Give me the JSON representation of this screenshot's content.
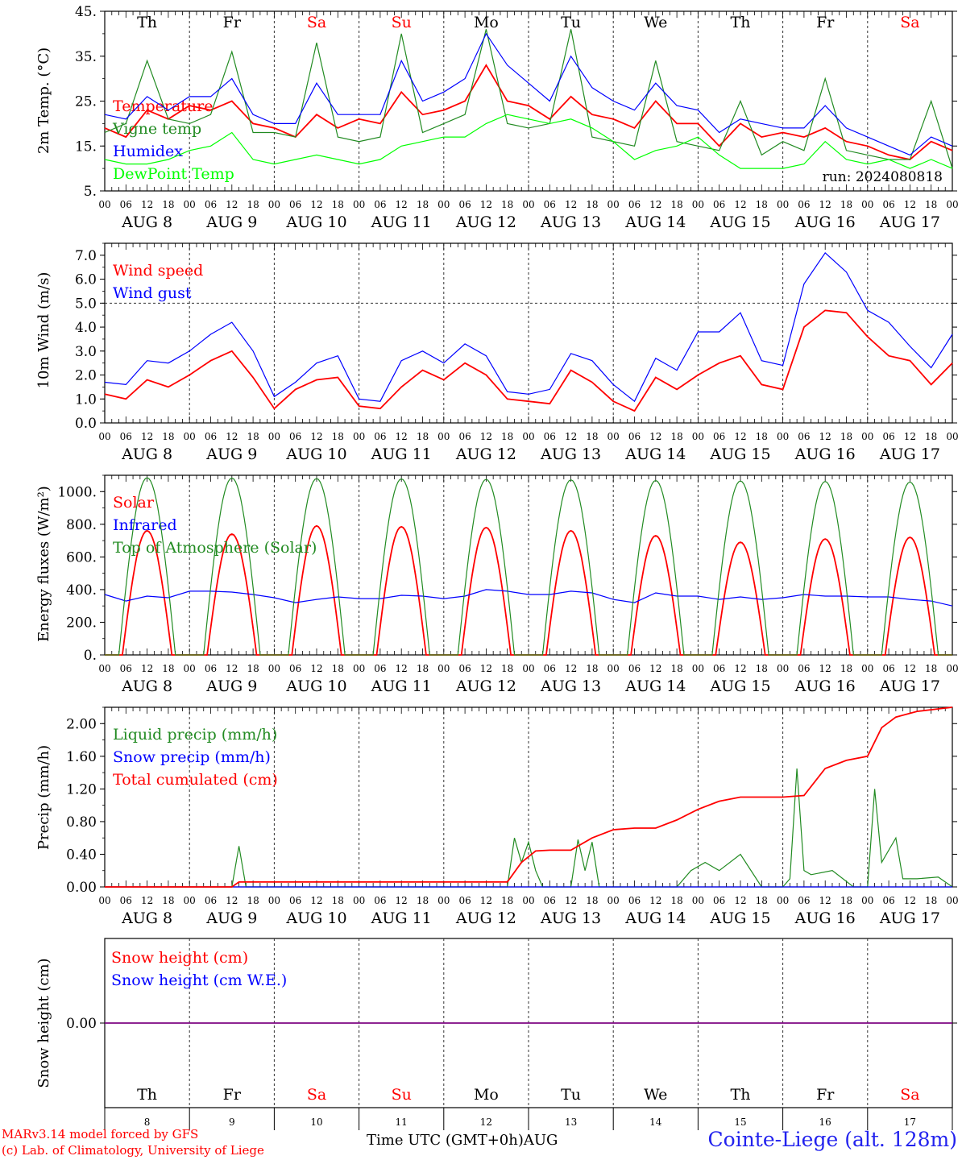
{
  "chart_data": [
    {
      "type": "line",
      "ylabel": "2m Temp. (°C)",
      "ylim": [
        5,
        45
      ],
      "yticks": [
        "5.",
        "15.",
        "25.",
        "35.",
        "45."
      ],
      "annotation": "run: 2024080818",
      "series": [
        {
          "name": "Temperature",
          "color": "#ff0000",
          "x_hours": [
            0,
            6,
            12,
            18,
            24,
            30,
            36,
            42,
            48,
            54,
            60,
            66,
            72,
            78,
            84,
            90,
            96,
            102,
            108,
            114,
            120,
            126,
            132,
            138,
            144,
            150,
            156,
            162,
            168,
            174,
            180,
            186,
            192,
            198,
            204,
            210,
            216,
            222,
            228,
            234,
            240
          ],
          "values": [
            19,
            17,
            23,
            21,
            24,
            23,
            25,
            20,
            19,
            17,
            22,
            19,
            21,
            20,
            27,
            22,
            23,
            25,
            33,
            25,
            24,
            21,
            26,
            22,
            21,
            19,
            25,
            20,
            20,
            15,
            20,
            17,
            18,
            17,
            19,
            16,
            15,
            13,
            12,
            16,
            14
          ]
        },
        {
          "name": "Vigne temp",
          "color": "#228b22",
          "x_hours": [
            0,
            6,
            12,
            18,
            24,
            30,
            36,
            42,
            48,
            54,
            60,
            66,
            72,
            78,
            84,
            90,
            96,
            102,
            108,
            114,
            120,
            126,
            132,
            138,
            144,
            150,
            156,
            162,
            168,
            174,
            180,
            186,
            192,
            198,
            204,
            210,
            216,
            222,
            228,
            234,
            240
          ],
          "values": [
            18,
            20,
            34,
            21,
            20,
            22,
            36,
            18,
            18,
            17,
            38,
            17,
            16,
            17,
            40,
            18,
            20,
            22,
            41,
            20,
            19,
            20,
            41,
            17,
            16,
            15,
            34,
            16,
            15,
            14,
            25,
            13,
            16,
            14,
            30,
            14,
            13,
            12,
            12,
            25,
            10
          ]
        },
        {
          "name": "Humidex",
          "color": "#0000ff",
          "x_hours": [
            0,
            6,
            12,
            18,
            24,
            30,
            36,
            42,
            48,
            54,
            60,
            66,
            72,
            78,
            84,
            90,
            96,
            102,
            108,
            114,
            120,
            126,
            132,
            138,
            144,
            150,
            156,
            162,
            168,
            174,
            180,
            186,
            192,
            198,
            204,
            210,
            216,
            222,
            228,
            234,
            240
          ],
          "values": [
            22,
            21,
            26,
            23,
            26,
            26,
            30,
            22,
            20,
            20,
            29,
            22,
            22,
            22,
            34,
            25,
            27,
            30,
            40,
            33,
            29,
            25,
            35,
            28,
            25,
            23,
            29,
            24,
            23,
            18,
            21,
            20,
            19,
            19,
            24,
            19,
            17,
            15,
            13,
            17,
            15
          ]
        },
        {
          "name": "DewPoint Temp",
          "color": "#00ff00",
          "x_hours": [
            0,
            6,
            12,
            18,
            24,
            30,
            36,
            42,
            48,
            54,
            60,
            66,
            72,
            78,
            84,
            90,
            96,
            102,
            108,
            114,
            120,
            126,
            132,
            138,
            144,
            150,
            156,
            162,
            168,
            174,
            180,
            186,
            192,
            198,
            204,
            210,
            216,
            222,
            228,
            234,
            240
          ],
          "values": [
            12,
            11,
            11,
            12,
            14,
            15,
            18,
            12,
            11,
            12,
            13,
            12,
            11,
            12,
            15,
            16,
            17,
            17,
            20,
            22,
            21,
            20,
            21,
            19,
            16,
            12,
            14,
            15,
            17,
            13,
            10,
            10,
            10,
            11,
            16,
            12,
            11,
            12,
            10,
            12,
            10
          ]
        }
      ]
    },
    {
      "type": "line",
      "ylabel": "10m Wind (m/s)",
      "ylim": [
        0,
        7.5
      ],
      "yticks": [
        "0.0",
        "1.0",
        "2.0",
        "3.0",
        "4.0",
        "5.0",
        "6.0",
        "7.0"
      ],
      "ref_line": 5.0,
      "series": [
        {
          "name": "Wind speed",
          "color": "#ff0000",
          "x_hours": [
            0,
            6,
            12,
            18,
            24,
            30,
            36,
            42,
            48,
            54,
            60,
            66,
            72,
            78,
            84,
            90,
            96,
            102,
            108,
            114,
            120,
            126,
            132,
            138,
            144,
            150,
            156,
            162,
            168,
            174,
            180,
            186,
            192,
            198,
            204,
            210,
            216,
            222,
            228,
            234,
            240
          ],
          "values": [
            1.2,
            1.0,
            1.8,
            1.5,
            2.0,
            2.6,
            3.0,
            1.9,
            0.6,
            1.4,
            1.8,
            1.9,
            0.7,
            0.6,
            1.5,
            2.2,
            1.8,
            2.5,
            2.0,
            1.0,
            0.9,
            0.8,
            2.2,
            1.7,
            0.9,
            0.5,
            1.9,
            1.4,
            2.0,
            2.5,
            2.8,
            1.6,
            1.4,
            4.0,
            4.7,
            4.6,
            3.6,
            2.8,
            2.6,
            1.6,
            2.5
          ]
        },
        {
          "name": "Wind gust",
          "color": "#0000ff",
          "x_hours": [
            0,
            6,
            12,
            18,
            24,
            30,
            36,
            42,
            48,
            54,
            60,
            66,
            72,
            78,
            84,
            90,
            96,
            102,
            108,
            114,
            120,
            126,
            132,
            138,
            144,
            150,
            156,
            162,
            168,
            174,
            180,
            186,
            192,
            198,
            204,
            210,
            216,
            222,
            228,
            234,
            240
          ],
          "values": [
            1.7,
            1.6,
            2.6,
            2.5,
            3.0,
            3.7,
            4.2,
            3.0,
            1.1,
            1.7,
            2.5,
            2.8,
            1.0,
            0.9,
            2.6,
            3.0,
            2.5,
            3.3,
            2.8,
            1.3,
            1.2,
            1.4,
            2.9,
            2.6,
            1.6,
            0.9,
            2.7,
            2.2,
            3.8,
            3.8,
            4.6,
            2.6,
            2.4,
            5.8,
            7.1,
            6.3,
            4.7,
            4.2,
            3.2,
            2.3,
            3.7
          ]
        }
      ]
    },
    {
      "type": "line",
      "ylabel": "Energy fluxes (W/m²)",
      "ylim": [
        0,
        1100
      ],
      "yticks": [
        "0.",
        "200.",
        "400.",
        "600.",
        "800.",
        "1000."
      ],
      "series": [
        {
          "name": "Solar",
          "color": "#ff0000",
          "daily_peak": [
            760,
            740,
            790,
            785,
            780,
            760,
            730,
            690,
            710,
            720
          ]
        },
        {
          "name": "Infrared",
          "color": "#0000ff",
          "x_hours": [
            0,
            6,
            12,
            18,
            24,
            30,
            36,
            42,
            48,
            54,
            60,
            66,
            72,
            78,
            84,
            90,
            96,
            102,
            108,
            114,
            120,
            126,
            132,
            138,
            144,
            150,
            156,
            162,
            168,
            174,
            180,
            186,
            192,
            198,
            204,
            210,
            216,
            222,
            228,
            234,
            240
          ],
          "values": [
            370,
            330,
            360,
            350,
            390,
            390,
            385,
            370,
            350,
            320,
            340,
            355,
            345,
            345,
            365,
            360,
            345,
            360,
            400,
            390,
            370,
            370,
            390,
            380,
            340,
            320,
            380,
            360,
            360,
            340,
            355,
            340,
            350,
            370,
            360,
            360,
            355,
            355,
            340,
            330,
            300
          ]
        },
        {
          "name": "Top of Atmosphere (Solar)",
          "color": "#228b22",
          "daily_peak": [
            1085,
            1083,
            1080,
            1078,
            1075,
            1072,
            1068,
            1065,
            1062,
            1058
          ]
        }
      ]
    },
    {
      "type": "line",
      "ylabel": "Precip (mm/h)",
      "ylim": [
        0,
        2.2
      ],
      "yticks": [
        "0.00",
        "0.40",
        "0.80",
        "1.20",
        "1.60",
        "2.00"
      ],
      "series": [
        {
          "name": "Liquid precip (mm/h)",
          "color": "#228b22",
          "x_hours": [
            0,
            36,
            38,
            40,
            42,
            44,
            114,
            116,
            118,
            120,
            122,
            124,
            132,
            134,
            136,
            138,
            140,
            162,
            166,
            170,
            174,
            180,
            186,
            192,
            194,
            196,
            198,
            200,
            206,
            212,
            216,
            218,
            220,
            224,
            226,
            230,
            236,
            240
          ],
          "values": [
            0,
            0,
            0.5,
            0,
            0,
            0,
            0,
            0.6,
            0.3,
            0.55,
            0.2,
            0,
            0,
            0.58,
            0.2,
            0.55,
            0,
            0,
            0.2,
            0.3,
            0.2,
            0.4,
            0,
            0,
            0.1,
            1.45,
            0.2,
            0.15,
            0.2,
            0,
            0,
            1.2,
            0.3,
            0.6,
            0.1,
            0.1,
            0.12,
            0
          ]
        },
        {
          "name": "Snow precip (mm/h)",
          "color": "#0000ff",
          "x_hours": [
            0,
            240
          ],
          "values": [
            0,
            0
          ]
        },
        {
          "name": "Total cumulated (cm)",
          "color": "#ff0000",
          "x_hours": [
            0,
            36,
            38,
            40,
            114,
            118,
            122,
            126,
            132,
            138,
            144,
            150,
            156,
            162,
            168,
            174,
            180,
            186,
            192,
            198,
            204,
            210,
            216,
            220,
            224,
            230,
            236,
            240
          ],
          "values": [
            0,
            0,
            0.06,
            0.06,
            0.06,
            0.3,
            0.44,
            0.45,
            0.45,
            0.6,
            0.7,
            0.72,
            0.72,
            0.82,
            0.95,
            1.05,
            1.1,
            1.1,
            1.1,
            1.12,
            1.45,
            1.55,
            1.6,
            1.95,
            2.08,
            2.15,
            2.18,
            2.2
          ]
        }
      ]
    },
    {
      "type": "line",
      "ylabel": "Snow height (cm)",
      "yticks": [
        "0.00"
      ],
      "series": [
        {
          "name": "Snow height (cm)",
          "color": "#ff0000",
          "x_hours": [
            0,
            240
          ],
          "values": [
            0,
            0
          ]
        },
        {
          "name": "Snow height (cm W.E.)",
          "color": "#0000ff",
          "x_hours": [
            0,
            240
          ],
          "values": [
            0,
            0
          ]
        }
      ]
    }
  ],
  "days": [
    {
      "name": "Th",
      "date": "AUG 8",
      "num": "8",
      "weekend": false
    },
    {
      "name": "Fr",
      "date": "AUG 9",
      "num": "9",
      "weekend": false
    },
    {
      "name": "Sa",
      "date": "AUG 10",
      "num": "10",
      "weekend": true
    },
    {
      "name": "Su",
      "date": "AUG 11",
      "num": "11",
      "weekend": true
    },
    {
      "name": "Mo",
      "date": "AUG 12",
      "num": "12",
      "weekend": false
    },
    {
      "name": "Tu",
      "date": "AUG 13",
      "num": "13",
      "weekend": false
    },
    {
      "name": "We",
      "date": "AUG 14",
      "num": "14",
      "weekend": false
    },
    {
      "name": "Th",
      "date": "AUG 15",
      "num": "15",
      "weekend": false
    },
    {
      "name": "Fr",
      "date": "AUG 16",
      "num": "16",
      "weekend": false
    },
    {
      "name": "Sa",
      "date": "AUG 17",
      "num": "17",
      "weekend": true
    }
  ],
  "hour_ticks": [
    "00",
    "06",
    "12",
    "18"
  ],
  "hour_end": "00",
  "x_title": "Time UTC (GMT+0h)",
  "month": "AUG",
  "station": "Cointe-Liege (alt. 128m)",
  "credit_line1": "MARv3.14 model forced by GFS",
  "credit_line2": "(c) Lab. of Climatology, University of Liege",
  "colors": {
    "weekend": "#ff0000",
    "weekday": "#000000"
  }
}
